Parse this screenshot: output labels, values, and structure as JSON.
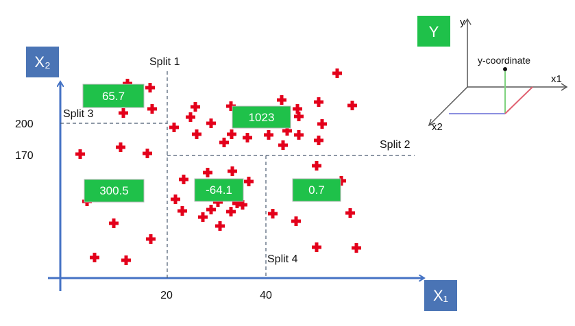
{
  "axes": {
    "x_name": "X₁",
    "y_name": "X₂",
    "x_ticks": [
      "20",
      "40"
    ],
    "y_ticks": [
      "200",
      "170"
    ]
  },
  "splits": [
    {
      "label": "Split 1",
      "axis": "x1",
      "value": 20
    },
    {
      "label": "Split 2",
      "axis": "x2",
      "value": 170
    },
    {
      "label": "Split 3",
      "axis": "x2",
      "value": 200
    },
    {
      "label": "Split 4",
      "axis": "x1",
      "value": 40
    }
  ],
  "regions": [
    {
      "value": "65.7"
    },
    {
      "value": "300.5"
    },
    {
      "value": "1023"
    },
    {
      "value": "-64.1"
    },
    {
      "value": "0.7"
    }
  ],
  "inset": {
    "y_box": "Y",
    "axis_y": "y",
    "axis_x1": "x1",
    "axis_x2": "x2",
    "point_label": "y-coordinate"
  },
  "colors": {
    "axis": "#4472c4",
    "box": "#4a74b5",
    "region_fill": "#1fc14a",
    "marker": "#e3001b",
    "split": "#4a5a70"
  }
}
